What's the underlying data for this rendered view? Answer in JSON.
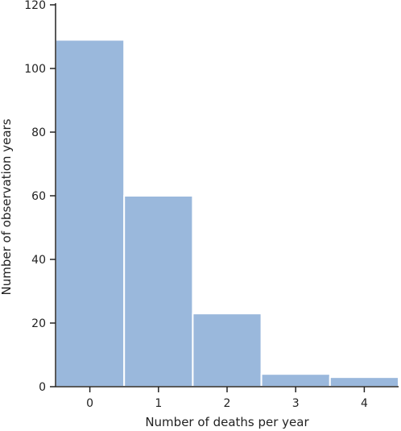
{
  "chart_data": {
    "type": "bar",
    "categories": [
      "0",
      "1",
      "2",
      "3",
      "4"
    ],
    "values": [
      109,
      60,
      23,
      4,
      3
    ],
    "title": "",
    "xlabel": "Number of deaths per year",
    "ylabel": "Number of observation years",
    "ylim": [
      0,
      120
    ],
    "yticks": [
      "0",
      "20",
      "40",
      "60",
      "80",
      "100",
      "120"
    ],
    "grid": false,
    "bar_color": "#9ab8dc",
    "bar_edge_color": "#ffffff",
    "axis_color": "#222222"
  }
}
